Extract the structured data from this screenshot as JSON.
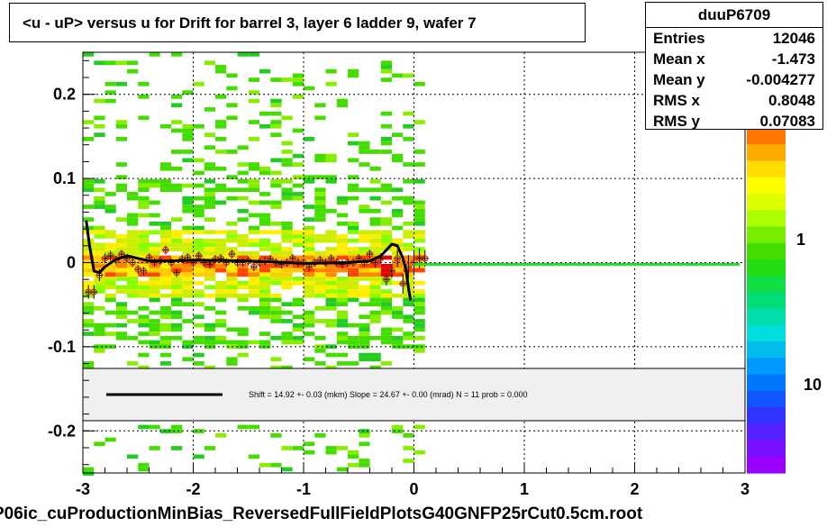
{
  "title": "<u - uP>       versus   u for Drift for barrel 3, layer 6 ladder 9, wafer 7",
  "stats": {
    "name": "duuP6709",
    "rows": [
      {
        "label": "Entries",
        "value": "12046"
      },
      {
        "label": "Mean x",
        "value": "-1.473"
      },
      {
        "label": "Mean y",
        "value": "-0.004277"
      },
      {
        "label": "RMS x",
        "value": "0.8048"
      },
      {
        "label": "RMS y",
        "value": "0.07083"
      }
    ]
  },
  "footer": "P06ic_cuProductionMinBias_ReversedFullFieldPlotsG40GNFP25rCut0.5cm.root",
  "fit_legend": "Shift =    14.92 +- 0.03 (mkm) Slope =    24.67 +- 0.00 (mrad)  N = 11 prob = 0.000",
  "colors": {
    "frame": "#000000",
    "fit_line": "#000000",
    "zero_line": "#22dd22",
    "points": "#cc2222",
    "legend_fill": "#f0f0f0"
  },
  "chart_data": {
    "type": "heatmap",
    "xlim": [
      -3,
      3
    ],
    "ylim": [
      -0.25,
      0.25
    ],
    "x_ticks": [
      -3,
      -2,
      -1,
      0,
      1,
      2,
      3
    ],
    "y_ticks": [
      -0.2,
      -0.1,
      0,
      0.1,
      0.2
    ],
    "x_tick_labels": [
      "-3",
      "-2",
      "-1",
      "0",
      "1",
      "2",
      "3"
    ],
    "y_tick_labels": [
      "-0.2",
      "-0.1",
      "0",
      "0.1",
      "0.2"
    ],
    "grid": true,
    "color_scale_labels": [
      "1",
      "10"
    ],
    "profile_points": {
      "x": [
        -2.95,
        -2.9,
        -2.85,
        -2.8,
        -2.75,
        -2.7,
        -2.65,
        -2.6,
        -2.55,
        -2.5,
        -2.45,
        -2.4,
        -2.35,
        -2.3,
        -2.25,
        -2.2,
        -2.15,
        -2.1,
        -2.05,
        -2.0,
        -1.95,
        -1.9,
        -1.85,
        -1.8,
        -1.75,
        -1.7,
        -1.65,
        -1.6,
        -1.55,
        -1.5,
        -1.45,
        -1.4,
        -1.35,
        -1.3,
        -1.25,
        -1.2,
        -1.15,
        -1.1,
        -1.05,
        -1.0,
        -0.95,
        -0.9,
        -0.85,
        -0.8,
        -0.75,
        -0.7,
        -0.65,
        -0.6,
        -0.55,
        -0.5,
        -0.45,
        -0.4,
        -0.35,
        -0.3,
        -0.25,
        -0.2,
        -0.15,
        -0.1,
        -0.05,
        0.0,
        0.05,
        0.1
      ],
      "y": [
        -0.035,
        -0.035,
        -0.015,
        0.005,
        0.008,
        0.003,
        0.01,
        0.005,
        0.0,
        -0.008,
        -0.01,
        0.006,
        0.0,
        0.002,
        0.015,
        0.0,
        -0.012,
        0.004,
        0.006,
        0.0,
        0.008,
        0.0,
        -0.002,
        0.004,
        0.005,
        0.0,
        0.01,
        0.0,
        0.0,
        0.002,
        -0.005,
        0.0,
        0.002,
        0.004,
        0.0,
        -0.002,
        0.0,
        0.005,
        0.0,
        0.0,
        -0.005,
        0.0,
        0.003,
        0.0,
        0.005,
        0.0,
        -0.002,
        0.0,
        0.0,
        0.005,
        0.0,
        0.01,
        0.0,
        0.005,
        -0.02,
        -0.01,
        0.005,
        -0.025,
        -0.005,
        0.0,
        0.005,
        0.005
      ],
      "err": [
        0.008,
        0.008,
        0.007,
        0.006,
        0.006,
        0.005,
        0.005,
        0.005,
        0.005,
        0.005,
        0.005,
        0.005,
        0.005,
        0.005,
        0.005,
        0.005,
        0.005,
        0.005,
        0.005,
        0.005,
        0.005,
        0.005,
        0.005,
        0.005,
        0.005,
        0.005,
        0.005,
        0.005,
        0.005,
        0.005,
        0.005,
        0.005,
        0.005,
        0.005,
        0.005,
        0.005,
        0.005,
        0.005,
        0.005,
        0.005,
        0.005,
        0.005,
        0.005,
        0.005,
        0.005,
        0.005,
        0.005,
        0.005,
        0.005,
        0.005,
        0.005,
        0.005,
        0.006,
        0.006,
        0.007,
        0.008,
        0.01,
        0.012,
        0.014,
        0.015,
        0.012,
        0.01
      ]
    },
    "fit_curve": {
      "x": [
        -2.97,
        -2.94,
        -2.9,
        -2.85,
        -2.8,
        -2.7,
        -2.6,
        -2.5,
        -2.4,
        -2.2,
        -2.0,
        -1.5,
        -1.0,
        -0.6,
        -0.4,
        -0.3,
        -0.25,
        -0.2,
        -0.15,
        -0.1,
        -0.07,
        -0.05,
        -0.03
      ],
      "y": [
        0.05,
        0.02,
        -0.01,
        -0.012,
        -0.005,
        0.004,
        0.008,
        0.005,
        0.002,
        0.002,
        0.003,
        0.002,
        -0.001,
        0.0,
        0.002,
        0.008,
        0.015,
        0.022,
        0.02,
        0.005,
        -0.01,
        -0.03,
        -0.045
      ]
    },
    "zero_line": {
      "x": [
        0.0,
        2.95
      ],
      "y": [
        -0.002,
        -0.002
      ]
    }
  }
}
